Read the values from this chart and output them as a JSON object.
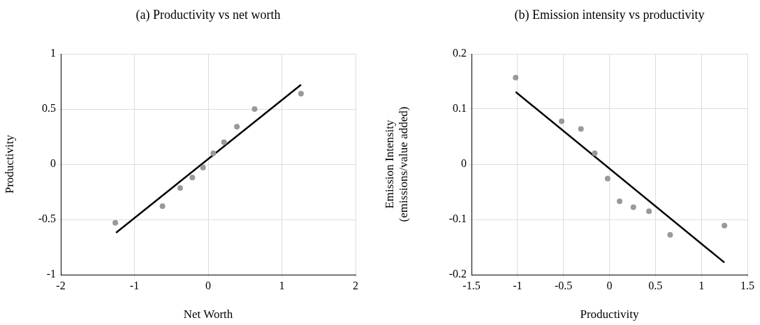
{
  "chart_data": [
    {
      "type": "scatter",
      "title": "(a) Productivity vs net worth",
      "xlabel": "Net Worth",
      "ylabel": "Productivity",
      "xlim": [
        -2,
        2
      ],
      "xticks": [
        -2,
        -1,
        0,
        1,
        2
      ],
      "ylim": [
        -1,
        1
      ],
      "yticks": [
        -1,
        -0.5,
        0,
        0.5,
        1
      ],
      "grid": true,
      "series": [
        {
          "type": "scatter",
          "color": "#999999",
          "marker": "circle",
          "x": [
            -1.26,
            -0.62,
            -0.38,
            -0.215,
            -0.07,
            0.07,
            0.215,
            0.39,
            0.63,
            1.26
          ],
          "values": [
            -0.53,
            -0.38,
            -0.215,
            -0.12,
            -0.03,
            0.1,
            0.2,
            0.34,
            0.5,
            0.64
          ]
        },
        {
          "type": "line",
          "color": "#000000",
          "marker": "none",
          "x": [
            -1.25,
            1.26
          ],
          "values": [
            -0.62,
            0.72
          ]
        }
      ]
    },
    {
      "type": "scatter",
      "title": "(b) Emission intensity vs productivity",
      "xlabel": "Productivity",
      "ylabel": "Emission Intensity\n(emissions/value added)",
      "xlim": [
        -1.5,
        1.5
      ],
      "xticks": [
        -1.5,
        -1,
        -0.5,
        0,
        0.5,
        1,
        1.5
      ],
      "ylim": [
        -0.2,
        0.2
      ],
      "yticks": [
        -0.2,
        -0.1,
        0,
        0.1,
        0.2
      ],
      "grid": true,
      "series": [
        {
          "type": "scatter",
          "color": "#999999",
          "marker": "circle",
          "x": [
            -1.02,
            -0.52,
            -0.31,
            -0.16,
            -0.02,
            0.11,
            0.26,
            0.43,
            0.66,
            1.25
          ],
          "values": [
            0.157,
            0.078,
            0.064,
            0.02,
            -0.026,
            -0.067,
            -0.078,
            -0.085,
            -0.128,
            -0.111
          ]
        },
        {
          "type": "line",
          "color": "#000000",
          "marker": "none",
          "x": [
            -1.02,
            1.25
          ],
          "values": [
            0.131,
            -0.178
          ]
        }
      ]
    }
  ]
}
